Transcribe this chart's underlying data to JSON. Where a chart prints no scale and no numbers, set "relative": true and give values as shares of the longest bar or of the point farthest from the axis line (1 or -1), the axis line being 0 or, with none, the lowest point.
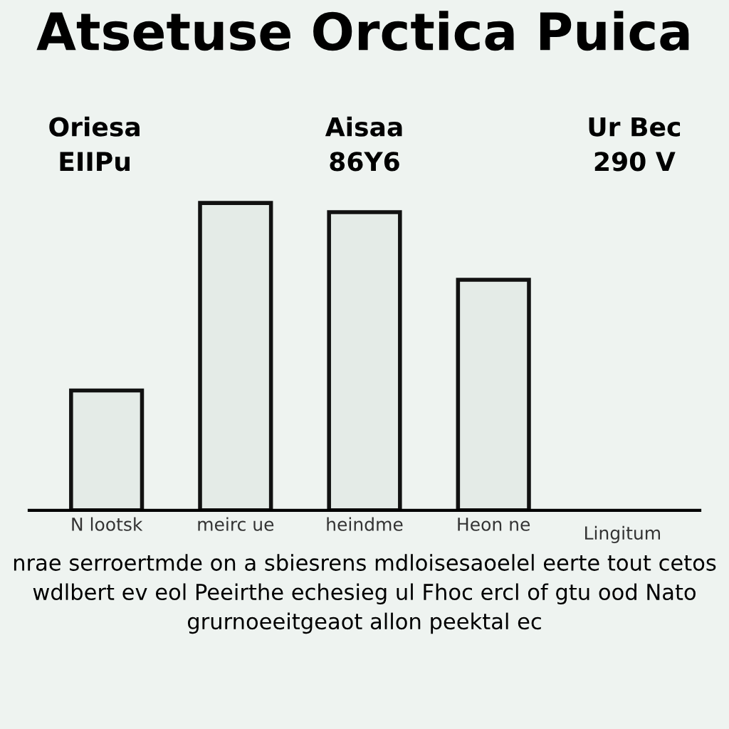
{
  "chart_data": {
    "type": "bar",
    "title": "Atsetuse Orctica Puica",
    "categories": [
      "N lootsk",
      "meirc ue",
      "heindme",
      "Heon ne"
    ],
    "values": [
      0.39,
      1.0,
      0.97,
      0.75
    ],
    "color": "#111111",
    "relative": true,
    "grid": false,
    "annotations": [
      "Lingitum",
      "Oriesa\nEIIPu",
      "Aisaa\n86Y6",
      "Ur Bec\n290 V",
      "nrae serroertmde on a sbiesrens mdloisesaoelel eerte tout cetos wdlbert ev eol Peeirthe echesieg ul Fhoc ercl of gtu ood Nato grurnoeeitgeaot allon peektal ec"
    ]
  }
}
